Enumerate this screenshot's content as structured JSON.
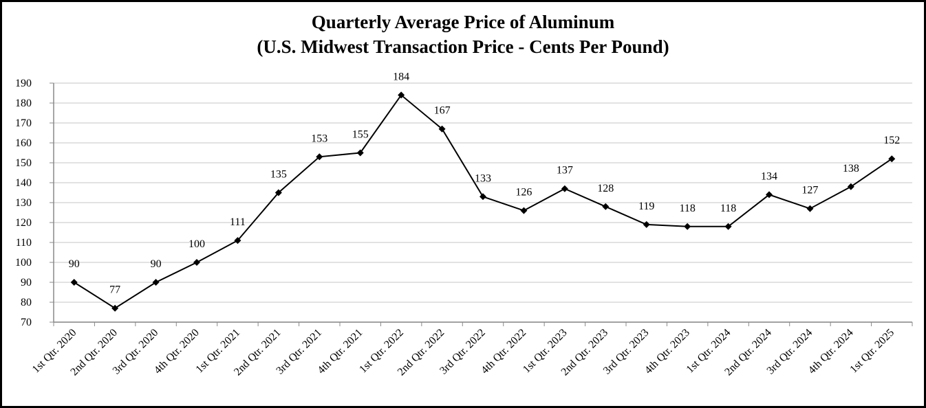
{
  "chart_data": {
    "type": "line",
    "title": "Quarterly Average Price of Aluminum",
    "subtitle": "(U.S. Midwest Transaction Price - Cents Per Pound)",
    "categories": [
      "1st Qtr. 2020",
      "2nd Qtr. 2020",
      "3rd Qtr. 2020",
      "4th Qtr. 2020",
      "1st Qtr. 2021",
      "2nd Qtr. 2021",
      "3rd Qtr. 2021",
      "4th Qtr. 2021",
      "1st Qtr. 2022",
      "2nd Qtr. 2022",
      "3rd Qtr. 2022",
      "4th Qtr. 2022",
      "1st Qtr. 2023",
      "2nd Qtr. 2023",
      "3rd Qtr. 2023",
      "4th Qtr. 2023",
      "1st Qtr. 2024",
      "2nd Qtr. 2024",
      "3rd Qtr. 2024",
      "4th Qtr. 2024",
      "1st Qtr. 2025"
    ],
    "values": [
      90,
      77,
      90,
      100,
      111,
      135,
      153,
      155,
      184,
      167,
      133,
      126,
      137,
      128,
      119,
      118,
      118,
      134,
      127,
      138,
      152
    ],
    "color": "#000000",
    "ylim": [
      70,
      190
    ],
    "yticks": [
      70,
      80,
      90,
      100,
      110,
      120,
      130,
      140,
      150,
      160,
      170,
      180,
      190
    ],
    "grid": true
  }
}
